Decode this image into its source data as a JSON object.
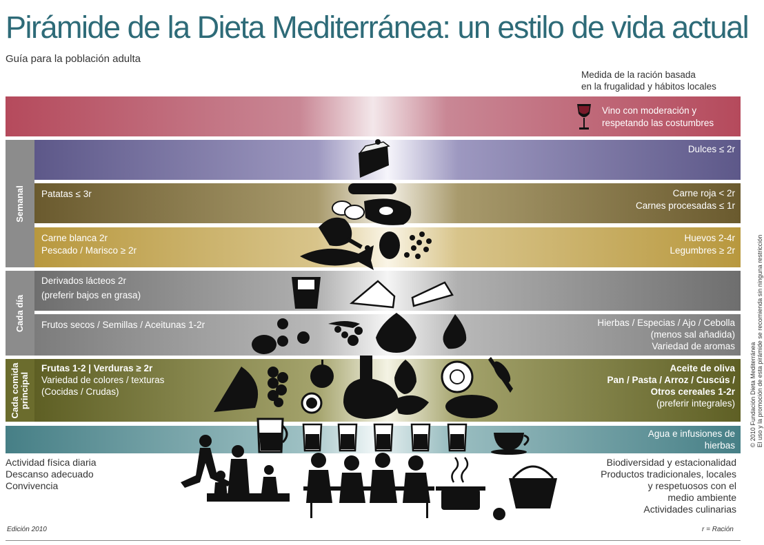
{
  "title": "Pirámide de la Dieta Mediterránea: un estilo de vida actual",
  "subtitle": "Guía para la población adulta",
  "measure_note": [
    "Medida de la ración basada",
    "en la frugalidad y hábitos locales"
  ],
  "wine": [
    "Vino con moderación y",
    "respetando las costumbres"
  ],
  "section_labels": {
    "weekly": "Semanal",
    "daily": "Cada día",
    "meal": [
      "Cada comida",
      "principal"
    ]
  },
  "weekly": {
    "sweets": "Dulces ≤ 2r",
    "potatoes": "Patatas ≤ 3r",
    "red_meat": [
      "Carne roja < 2r",
      "Carnes procesadas ≤ 1r"
    ],
    "white_meat": [
      "Carne blanca 2r",
      "Pescado / Marisco ≥ 2r"
    ],
    "eggs": [
      "Huevos 2-4r",
      "Legumbres ≥ 2r"
    ]
  },
  "daily": {
    "dairy": [
      "Derivados lácteos 2r",
      "(preferir bajos en grasa)"
    ],
    "nuts": "Frutos secos / Semillas / Aceitunas 1-2r",
    "herbs": [
      "Hierbas / Especias / Ajo / Cebolla",
      "(menos sal añadida)",
      "Variedad de aromas"
    ]
  },
  "meal": {
    "fruits_bold": "Frutas 1-2 | Verduras ≥ 2r",
    "fruits": [
      "Variedad de colores / texturas",
      "(Cocidas / Crudas)"
    ],
    "oil_bold": [
      "Aceite de oliva",
      "Pan / Pasta / Arroz / Cuscús /",
      "Otros cereales 1-2r"
    ],
    "oil": "(preferir integrales)"
  },
  "water": [
    "Agua e infusiones de",
    "hierbas"
  ],
  "lifestyle_left": [
    "Actividad física diaria",
    "Descanso adecuado",
    "Convivencia"
  ],
  "lifestyle_right": [
    "Biodiversidad y estacionalidad",
    "Productos tradicionales, locales",
    "y respetuosos con el",
    "medio ambiente",
    "Actividades culinarias"
  ],
  "edition": "Edición 2010",
  "legend_r": "r = Ración",
  "copyright": [
    "© 2010 Fundación Dieta Mediterránea",
    "El uso y la promoción de esta pirámide se recomienda sin ninguna restricción"
  ],
  "colors": {
    "title": "#2e6b78",
    "wine_band": "#b54a5c",
    "sweets_band": "#6a6596",
    "meat_band": "#6f6034",
    "white_meat_band": "#c0a246",
    "dairy_band": "#7a7a7a",
    "meal_band": "#6b6c2d",
    "water_band": "#4f8c92",
    "label_gray": "#8c8c8c"
  },
  "icons": [
    "wine-glass-icon",
    "cake-icon",
    "sausage-icon",
    "steak-icon",
    "potato-icon",
    "chicken-icon",
    "egg-icon",
    "fish-icon",
    "beans-icon",
    "yogurt-icon",
    "cheese-icon",
    "walnut-icon",
    "grapes-icon",
    "onion-icon",
    "garlic-icon",
    "watermelon-icon",
    "apple-icon",
    "oil-jar-icon",
    "lettuce-icon",
    "bread-icon",
    "wheat-icon",
    "jug-icon",
    "water-glass-icon",
    "teacup-icon",
    "family-icon",
    "pot-icon",
    "basket-icon"
  ]
}
